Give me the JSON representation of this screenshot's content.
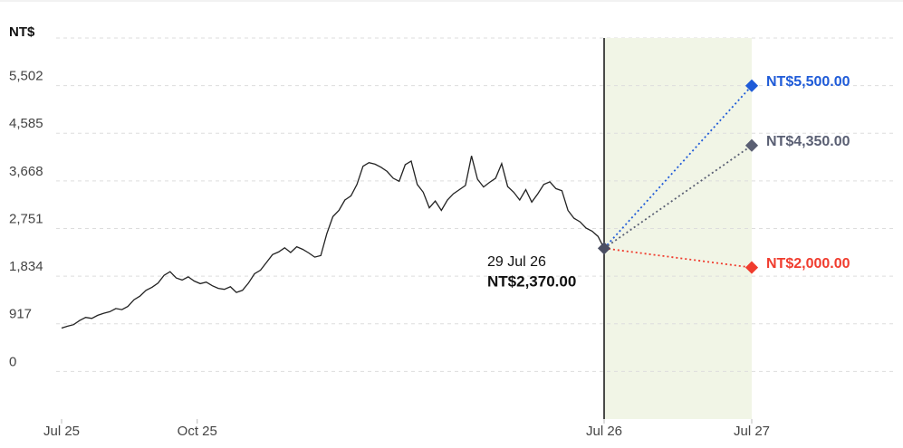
{
  "chart_data": {
    "type": "line",
    "y_label": "NT$",
    "ylim": [
      -917,
      6419
    ],
    "yticks": [
      0,
      917,
      {
        "value": 1834,
        "label": "1,834"
      },
      {
        "value": 2751,
        "label": "2,751"
      },
      {
        "value": 3668,
        "label": "3,668"
      },
      {
        "value": 4585,
        "label": "4,585"
      },
      {
        "value": 5502,
        "label": "5,502"
      }
    ],
    "xticks": [
      {
        "value": 2025.57,
        "label": "Jul 25"
      },
      {
        "value": 2025.82,
        "label": "Oct 25"
      },
      {
        "value": 2026.57,
        "label": "Jul 26"
      },
      {
        "value": 2027.57,
        "label": "Jul 27"
      }
    ],
    "grid": true,
    "series": [
      {
        "color": "#222222",
        "values": [
          835,
          870,
          900,
          980,
          1040,
          1020,
          1080,
          1120,
          1150,
          1210,
          1190,
          1250,
          1380,
          1450,
          1560,
          1620,
          1700,
          1850,
          1920,
          1800,
          1760,
          1820,
          1740,
          1690,
          1720,
          1650,
          1600,
          1580,
          1630,
          1520,
          1560,
          1700,
          1880,
          1950,
          2100,
          2250,
          2300,
          2380,
          2290,
          2400,
          2350,
          2280,
          2200,
          2230,
          2650,
          2980,
          3100,
          3300,
          3380,
          3600,
          3950,
          4020,
          3990,
          3930,
          3850,
          3720,
          3660,
          3980,
          4050,
          3600,
          3450,
          3150,
          3280,
          3100,
          3300,
          3420,
          3500,
          3580,
          4150,
          3700,
          3550,
          3640,
          3720,
          4000,
          3560,
          3450,
          3300,
          3500,
          3260,
          3420,
          3600,
          3650,
          3520,
          3480,
          3100,
          2950,
          2880,
          2760,
          2700,
          2600,
          2370
        ]
      }
    ],
    "current": {
      "date": "29 Jul 26",
      "value": 2370,
      "label": "NT$2,370.00"
    },
    "forecast_region_color": "#f1f5e6",
    "targets": [
      {
        "value": 5500,
        "label": "NT$5,500.00",
        "color": "#1f5bd8"
      },
      {
        "value": 4350,
        "label": "NT$4,350.00",
        "color": "#5a5f73"
      },
      {
        "value": 2000,
        "label": "NT$2,000.00",
        "color": "#f03c2e"
      }
    ]
  }
}
